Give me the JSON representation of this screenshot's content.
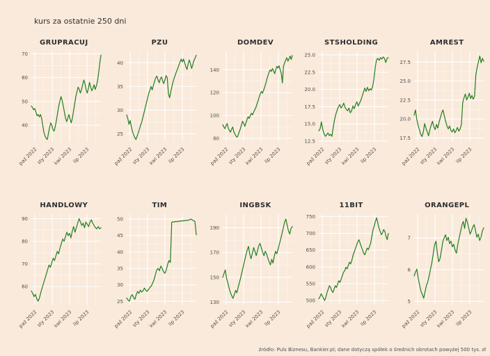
{
  "page": {
    "title": "kurs za ostatnie 250 dni",
    "footer": "źródło: Puls Biznesu, Bankier.pl; dane dotyczą spółek o średnich obrotach powyżej 500 tys. zł",
    "background": "#faeadb"
  },
  "colors": {
    "line": "#1f7d1f",
    "grid_major": "#ffffff",
    "grid_minor": "#ffffff",
    "title_text": "#2e2e2e",
    "tick_text": "#4d4d4d"
  },
  "chart_data": [
    {
      "type": "line",
      "title": "GRUPRACUJ",
      "ylim": [
        33,
        71
      ],
      "yticks": [
        40,
        50,
        60,
        70
      ],
      "ytick_labels": [
        "40",
        "50",
        "60",
        "70"
      ],
      "xtick_labels": [
        "paź 2022",
        "sty 2023",
        "kwi 2023",
        "lip 2023"
      ],
      "values": [
        48,
        47.5,
        46.5,
        47,
        45.5,
        44,
        44.5,
        43.5,
        44.5,
        43,
        40,
        37,
        35.5,
        34.5,
        34,
        36.5,
        39,
        41,
        40,
        38,
        37.5,
        39.5,
        42,
        45,
        48,
        50,
        52,
        50.5,
        48,
        45.5,
        43,
        41.5,
        43,
        44.5,
        42.5,
        41,
        43,
        46,
        49,
        52,
        54,
        56,
        55,
        53.5,
        55,
        57,
        59,
        57.5,
        55,
        53.5,
        55.5,
        58,
        56,
        54.5,
        55.5,
        57,
        55,
        56.5,
        58.5,
        62,
        66,
        69.5
      ]
    },
    {
      "type": "line",
      "title": "PZU",
      "ylim": [
        23.3,
        42.4
      ],
      "yticks": [
        25,
        30,
        35,
        40
      ],
      "ytick_labels": [
        "25",
        "30",
        "35",
        "40"
      ],
      "xtick_labels": [
        "paź 2022",
        "sty 2023",
        "kwi 2023",
        "lip 2023"
      ],
      "values": [
        29,
        28.2,
        27,
        27.8,
        26.5,
        25.5,
        24.8,
        24.2,
        23.8,
        24.5,
        25.2,
        26,
        26.8,
        27.5,
        28.5,
        29.5,
        30.5,
        31.5,
        32.5,
        33.5,
        34.2,
        35,
        34.3,
        35.2,
        36,
        36.8,
        37.2,
        36.4,
        35.8,
        36.6,
        37,
        36.2,
        35.6,
        36.4,
        37.3,
        36.8,
        33.5,
        32.6,
        33.8,
        35,
        36,
        36.8,
        37.5,
        38.2,
        38.8,
        39.5,
        40.2,
        40.8,
        40.2,
        40.8,
        40,
        39.2,
        38.6,
        39.8,
        40.6,
        39.8,
        38.8,
        39.6,
        40.5,
        41,
        41.6
      ]
    },
    {
      "type": "line",
      "title": "DOMDEV",
      "ylim": [
        77,
        156
      ],
      "yticks": [
        80,
        100,
        120,
        140
      ],
      "ytick_labels": [
        "80",
        "100",
        "120",
        "140"
      ],
      "xtick_labels": [
        "paź 2022",
        "sty 2023",
        "kwi 2023",
        "lip 2023"
      ],
      "values": [
        92,
        90,
        88.5,
        91,
        93,
        89,
        87,
        85.5,
        88,
        90,
        86,
        84,
        82,
        81,
        83,
        86,
        88.5,
        92,
        95,
        93,
        90.5,
        93.5,
        96.5,
        99,
        97.5,
        100,
        102,
        100.5,
        103,
        105,
        107,
        110,
        113,
        116,
        119,
        121,
        119.5,
        122,
        125,
        128,
        132,
        135,
        138,
        140,
        138.5,
        141,
        139,
        136.5,
        140,
        143,
        141.5,
        143.5,
        140,
        137,
        128.5,
        143,
        146,
        148.5,
        150.5,
        147.5,
        149.5,
        152,
        149,
        152.5
      ]
    },
    {
      "type": "line",
      "title": "STSHOLDING",
      "ylim": [
        12.4,
        25.5
      ],
      "yticks": [
        12.5,
        15.0,
        17.5,
        20.0,
        22.5,
        25.0
      ],
      "ytick_labels": [
        "12.5",
        "15.0",
        "17.5",
        "20.0",
        "22.5",
        "25.0"
      ],
      "xtick_labels": [
        "paź 2022",
        "sty 2023",
        "kwi 2023",
        "lip 2023"
      ],
      "values": [
        14,
        14.3,
        15.3,
        14.2,
        13.6,
        13.2,
        13.4,
        13.7,
        13.3,
        13.5,
        13.2,
        14.5,
        15.6,
        16.4,
        17,
        17.5,
        17.8,
        17.3,
        17.6,
        18,
        17.4,
        17.1,
        16.9,
        17.3,
        16.6,
        16.9,
        17.6,
        17.2,
        17.8,
        18.2,
        17.6,
        18,
        18.4,
        19,
        19.6,
        20.2,
        19.7,
        20.3,
        19.8,
        20.1,
        19.9,
        20.4,
        21.5,
        23.2,
        24.3,
        24.5,
        24.2,
        24.6,
        24.4,
        24.7,
        24.5,
        23.9,
        24.5,
        24.6
      ]
    },
    {
      "type": "line",
      "title": "AMREST",
      "ylim": [
        17.0,
        28.9
      ],
      "yticks": [
        17.5,
        20.0,
        22.5,
        25.0,
        27.5
      ],
      "ytick_labels": [
        "17.5",
        "20.0",
        "22.5",
        "25.0",
        "27.5"
      ],
      "xtick_labels": [
        "paź 2022",
        "sty 2023",
        "kwi 2023",
        "lip 2023"
      ],
      "values": [
        20.5,
        21.2,
        20,
        19.2,
        18.6,
        18,
        17.7,
        18.3,
        19.4,
        18.8,
        18.3,
        17.8,
        18.6,
        19.2,
        19.7,
        19,
        18.6,
        19.3,
        18.8,
        19.6,
        20.2,
        20.8,
        21.2,
        20.4,
        19.7,
        19.1,
        18.7,
        19.1,
        18.5,
        18.3,
        18.7,
        18.2,
        18.5,
        18.9,
        18.4,
        18.7,
        19.3,
        22.2,
        22.8,
        23.3,
        22.5,
        22.9,
        23.4,
        22.7,
        23.1,
        22.6,
        23,
        25.8,
        26.8,
        27.6,
        28.3,
        27.4,
        28,
        27.6
      ]
    },
    {
      "type": "line",
      "title": "HANDLOWY",
      "ylim": [
        52,
        92
      ],
      "yticks": [
        60,
        70,
        80,
        90
      ],
      "ytick_labels": [
        "60",
        "70",
        "80",
        "90"
      ],
      "xtick_labels": [
        "paź 2022",
        "sty 2023",
        "kwi 2023",
        "lip 2023"
      ],
      "values": [
        58,
        57,
        55.5,
        56.5,
        54.5,
        53.5,
        55,
        57.5,
        59.5,
        61.5,
        63.5,
        65.5,
        67.5,
        69.5,
        68.5,
        70.5,
        72.5,
        71.5,
        73.5,
        75.5,
        74.5,
        77,
        79,
        81,
        80,
        82,
        84,
        82.5,
        83.5,
        81.5,
        84.5,
        86.5,
        84,
        86,
        88,
        90,
        88.5,
        87,
        88,
        86,
        88.5,
        87.5,
        86.5,
        88.5,
        89.5,
        88,
        87,
        86,
        85.5,
        86.5,
        85.5,
        86
      ]
    },
    {
      "type": "line",
      "title": "TIM",
      "ylim": [
        24,
        51.5
      ],
      "yticks": [
        25,
        30,
        35,
        40,
        45,
        50
      ],
      "ytick_labels": [
        "25",
        "30",
        "35",
        "40",
        "45",
        "50"
      ],
      "xtick_labels": [
        "paź 2022",
        "sty 2023",
        "kwi 2023",
        "lip 2023"
      ],
      "values": [
        26,
        25.4,
        25,
        26.4,
        27,
        26.2,
        25.6,
        27,
        28,
        27.4,
        28.4,
        27.8,
        28.2,
        29,
        28.4,
        28,
        28.6,
        29.2,
        29.6,
        30.5,
        31.5,
        33,
        34.5,
        35,
        34.3,
        35.7,
        35,
        34,
        33.5,
        34.5,
        36.2,
        37.4,
        36.8,
        49,
        49.2,
        49.1,
        49.3,
        49.2,
        49.4,
        49.3,
        49.5,
        49.4,
        49.6,
        49.5,
        49.7,
        49.6,
        49.8,
        50,
        49.8,
        49.5,
        49.3,
        45.2
      ]
    },
    {
      "type": "line",
      "title": "INGBSK",
      "ylim": [
        128,
        201
      ],
      "yticks": [
        130,
        150,
        170,
        190
      ],
      "ytick_labels": [
        "130",
        "150",
        "170",
        "190"
      ],
      "xtick_labels": [
        "paź 2022",
        "sty 2023",
        "kwi 2023",
        "lip 2023"
      ],
      "values": [
        150,
        153,
        156,
        149,
        145.5,
        141,
        137.5,
        135,
        133,
        136,
        139.5,
        137.5,
        142,
        146,
        150,
        154.5,
        159,
        163.5,
        168,
        172,
        175,
        168.5,
        165,
        169.5,
        174,
        171,
        167.5,
        171.5,
        175.5,
        177.5,
        173.5,
        170,
        167.5,
        171,
        169,
        165.5,
        162.5,
        160,
        164.5,
        161.5,
        167,
        171,
        169,
        173,
        177,
        181,
        185.5,
        190,
        194.5,
        197,
        192,
        187.5,
        185,
        189.5,
        191
      ]
    },
    {
      "type": "line",
      "title": "11BIT",
      "ylim": [
        488,
        757
      ],
      "yticks": [
        500,
        550,
        600,
        650,
        700,
        750
      ],
      "ytick_labels": [
        "500",
        "550",
        "600",
        "650",
        "700",
        "750"
      ],
      "xtick_labels": [
        "paź 2022",
        "sty 2023",
        "kwi 2023",
        "lip 2023"
      ],
      "values": [
        505,
        511,
        520,
        514,
        506,
        500,
        510,
        524,
        534,
        544,
        539,
        529,
        524,
        534,
        544,
        539,
        549,
        559,
        554,
        564,
        574,
        584,
        589,
        599,
        594,
        604,
        614,
        609,
        619,
        634,
        644,
        654,
        664,
        674,
        681,
        671,
        661,
        651,
        641,
        636,
        646,
        656,
        651,
        661,
        671,
        691,
        711,
        721,
        736,
        746,
        731,
        716,
        706,
        696,
        701,
        711,
        706,
        691,
        681,
        700
      ]
    },
    {
      "type": "line",
      "title": "ORANGEPL",
      "ylim": [
        4.9,
        7.75
      ],
      "yticks": [
        5,
        6,
        7
      ],
      "ytick_labels": [
        "5",
        "6",
        "7"
      ],
      "xtick_labels": [
        "paź 2022",
        "sty 2023",
        "kwi 2023",
        "lip 2023"
      ],
      "values": [
        5.8,
        5.92,
        6.02,
        5.72,
        5.52,
        5.32,
        5.22,
        5.1,
        5.3,
        5.5,
        5.62,
        5.8,
        6.02,
        6.22,
        6.5,
        6.78,
        6.9,
        6.52,
        6.25,
        6.35,
        6.6,
        6.88,
        7.0,
        7.1,
        6.92,
        7.02,
        6.82,
        6.9,
        6.72,
        6.8,
        6.62,
        6.52,
        6.8,
        7.0,
        7.2,
        7.4,
        7.52,
        7.3,
        7.62,
        7.5,
        7.32,
        7.12,
        7.22,
        7.35,
        7.42,
        7.22,
        7.02,
        7.12,
        6.92,
        7.02,
        7.22,
        7.32
      ]
    }
  ]
}
